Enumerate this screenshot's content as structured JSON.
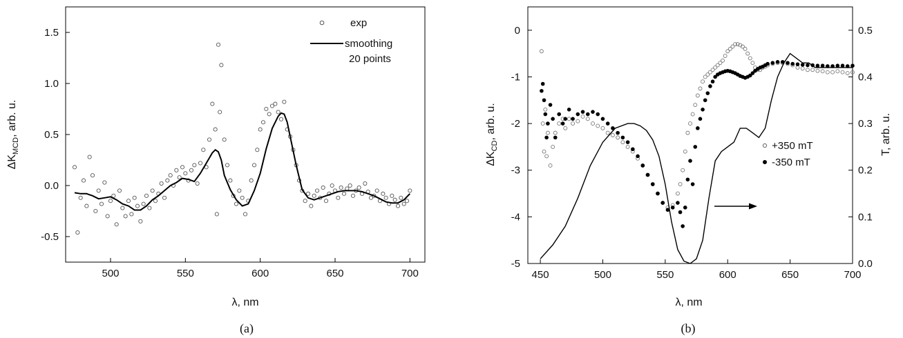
{
  "chart_data": [
    {
      "type": "scatter",
      "panel_label": "(a)",
      "xlabel": "λ, nm",
      "ylabel_main": "ΔK",
      "ylabel_sub": "MCD",
      "ylabel_rest": ", arb. u.",
      "xlim": [
        470,
        710
      ],
      "ylim": [
        -0.75,
        1.75
      ],
      "xticks": [
        500,
        550,
        600,
        650,
        700
      ],
      "yticks": [
        -0.5,
        0.0,
        0.5,
        1.0,
        1.5
      ],
      "ytick_labels": [
        "-0.5",
        "0.0",
        "0.5",
        "1.0",
        "1.5"
      ],
      "legend": {
        "position": "top-right",
        "entries": [
          "exp",
          "smoothing",
          "20 points"
        ]
      },
      "series": [
        {
          "name": "exp",
          "style": "open-circle",
          "x": [
            476,
            478,
            480,
            482,
            484,
            486,
            488,
            490,
            492,
            494,
            496,
            498,
            500,
            502,
            504,
            506,
            508,
            510,
            512,
            514,
            516,
            518,
            520,
            522,
            524,
            526,
            528,
            530,
            532,
            534,
            536,
            538,
            540,
            542,
            544,
            546,
            548,
            550,
            552,
            554,
            556,
            558,
            560,
            562,
            564,
            566,
            568,
            570,
            571,
            572,
            573,
            574,
            576,
            578,
            580,
            582,
            584,
            586,
            588,
            590,
            592,
            594,
            596,
            598,
            600,
            602,
            604,
            606,
            608,
            610,
            612,
            614,
            616,
            618,
            620,
            622,
            624,
            626,
            628,
            630,
            632,
            634,
            636,
            638,
            640,
            642,
            644,
            646,
            648,
            650,
            652,
            654,
            656,
            658,
            660,
            662,
            664,
            666,
            668,
            670,
            672,
            674,
            676,
            678,
            680,
            682,
            684,
            686,
            688,
            690,
            692,
            694,
            696,
            698,
            700
          ],
          "y": [
            0.18,
            -0.46,
            -0.12,
            0.05,
            -0.2,
            0.28,
            0.1,
            -0.25,
            -0.05,
            -0.18,
            0.03,
            -0.3,
            -0.15,
            -0.1,
            -0.38,
            -0.05,
            -0.22,
            -0.3,
            -0.15,
            -0.28,
            -0.12,
            -0.2,
            -0.35,
            -0.18,
            -0.1,
            -0.22,
            -0.05,
            -0.15,
            -0.08,
            0.02,
            -0.12,
            0.05,
            0.1,
            0.0,
            0.15,
            0.08,
            0.18,
            0.12,
            0.05,
            0.15,
            0.2,
            0.02,
            0.22,
            0.35,
            0.18,
            0.45,
            0.8,
            0.55,
            -0.28,
            1.38,
            0.72,
            1.18,
            0.45,
            0.2,
            0.05,
            -0.1,
            -0.18,
            -0.05,
            -0.12,
            -0.28,
            -0.15,
            0.05,
            0.2,
            0.35,
            0.55,
            0.62,
            0.75,
            0.7,
            0.78,
            0.8,
            0.72,
            0.65,
            0.82,
            0.55,
            0.48,
            0.35,
            0.2,
            0.05,
            -0.05,
            -0.15,
            -0.08,
            -0.2,
            -0.1,
            -0.05,
            -0.12,
            -0.02,
            -0.15,
            -0.08,
            0.0,
            -0.05,
            -0.12,
            -0.02,
            -0.08,
            -0.03,
            0.0,
            -0.1,
            -0.05,
            -0.02,
            -0.08,
            0.02,
            -0.06,
            -0.12,
            -0.1,
            -0.05,
            -0.15,
            -0.08,
            -0.12,
            -0.18,
            -0.1,
            -0.14,
            -0.2,
            -0.12,
            -0.18,
            -0.15,
            -0.05
          ]
        },
        {
          "name": "smoothing 20 points",
          "style": "line",
          "x": [
            476,
            480,
            484,
            488,
            492,
            496,
            500,
            504,
            508,
            512,
            516,
            520,
            524,
            528,
            532,
            536,
            540,
            544,
            548,
            552,
            556,
            560,
            564,
            568,
            570,
            572,
            574,
            576,
            580,
            584,
            588,
            592,
            596,
            600,
            604,
            608,
            612,
            614,
            616,
            618,
            620,
            624,
            628,
            632,
            636,
            640,
            644,
            648,
            652,
            656,
            660,
            664,
            668,
            672,
            676,
            680,
            684,
            688,
            692,
            696,
            700
          ],
          "y": [
            -0.07,
            -0.08,
            -0.08,
            -0.1,
            -0.13,
            -0.12,
            -0.11,
            -0.14,
            -0.18,
            -0.2,
            -0.24,
            -0.24,
            -0.2,
            -0.14,
            -0.1,
            -0.05,
            0.0,
            0.03,
            0.07,
            0.06,
            0.04,
            0.12,
            0.22,
            0.32,
            0.35,
            0.33,
            0.25,
            0.1,
            -0.04,
            -0.14,
            -0.2,
            -0.18,
            -0.05,
            0.12,
            0.36,
            0.56,
            0.68,
            0.71,
            0.7,
            0.62,
            0.48,
            0.2,
            -0.04,
            -0.12,
            -0.14,
            -0.12,
            -0.1,
            -0.08,
            -0.06,
            -0.05,
            -0.05,
            -0.05,
            -0.06,
            -0.08,
            -0.1,
            -0.13,
            -0.16,
            -0.17,
            -0.17,
            -0.14,
            -0.08
          ]
        }
      ]
    },
    {
      "type": "scatter",
      "panel_label": "(b)",
      "xlabel": "λ, nm",
      "ylabel_main": "ΔK",
      "ylabel_sub": "CD",
      "ylabel_rest": ", arb. u.",
      "y2label": "T, arb. u.",
      "xlim": [
        440,
        700
      ],
      "ylim": [
        -5,
        0.5
      ],
      "y2lim": [
        0.0,
        0.55
      ],
      "xticks": [
        450,
        500,
        550,
        600,
        650,
        700
      ],
      "yticks": [
        -5,
        -4,
        -3,
        -2,
        -1,
        0
      ],
      "y2ticks": [
        0.0,
        0.1,
        0.2,
        0.3,
        0.4,
        0.5
      ],
      "y2tick_labels": [
        "0.0",
        "0.1",
        "0.2",
        "0.3",
        "0.4",
        "0.5"
      ],
      "legend": {
        "position": "right",
        "entries": [
          "+350 mT",
          "-350 mT"
        ]
      },
      "annotation": "arrow pointing right (T curve on right axis)",
      "series": [
        {
          "name": "+350 mT",
          "style": "open-circle",
          "x": [
            451,
            452,
            453,
            454,
            455,
            456,
            458,
            460,
            462,
            465,
            468,
            470,
            473,
            476,
            480,
            484,
            488,
            492,
            496,
            500,
            504,
            508,
            512,
            516,
            520,
            524,
            528,
            532,
            536,
            540,
            544,
            548,
            552,
            556,
            560,
            562,
            564,
            566,
            568,
            570,
            572,
            574,
            576,
            578,
            580,
            582,
            584,
            586,
            588,
            590,
            592,
            594,
            596,
            598,
            600,
            602,
            604,
            606,
            608,
            610,
            612,
            614,
            616,
            618,
            620,
            622,
            624,
            626,
            628,
            630,
            632,
            636,
            640,
            644,
            648,
            652,
            656,
            660,
            664,
            668,
            672,
            676,
            680,
            684,
            688,
            692,
            696,
            700
          ],
          "y": [
            -0.45,
            -2.0,
            -2.6,
            -1.7,
            -2.7,
            -2.2,
            -2.9,
            -2.5,
            -2.2,
            -2.0,
            -1.9,
            -2.1,
            -1.9,
            -2.0,
            -1.95,
            -1.85,
            -1.9,
            -2.0,
            -2.05,
            -2.1,
            -2.2,
            -2.25,
            -2.3,
            -2.4,
            -2.5,
            -2.6,
            -2.75,
            -2.9,
            -3.1,
            -3.3,
            -3.5,
            -3.7,
            -3.8,
            -3.75,
            -3.5,
            -3.3,
            -3.0,
            -2.6,
            -2.2,
            -2.0,
            -1.8,
            -1.6,
            -1.4,
            -1.25,
            -1.1,
            -1.0,
            -0.95,
            -0.9,
            -0.85,
            -0.8,
            -0.75,
            -0.7,
            -0.65,
            -0.55,
            -0.45,
            -0.4,
            -0.35,
            -0.3,
            -0.3,
            -0.32,
            -0.35,
            -0.4,
            -0.5,
            -0.6,
            -0.7,
            -0.8,
            -0.85,
            -0.85,
            -0.8,
            -0.78,
            -0.75,
            -0.72,
            -0.7,
            -0.7,
            -0.72,
            -0.75,
            -0.8,
            -0.82,
            -0.85,
            -0.85,
            -0.87,
            -0.88,
            -0.9,
            -0.9,
            -0.88,
            -0.9,
            -0.92,
            -0.9
          ]
        },
        {
          "name": "-350 mT",
          "style": "filled-circle",
          "x": [
            451,
            452,
            453,
            454,
            455,
            456,
            458,
            460,
            462,
            465,
            468,
            470,
            473,
            476,
            480,
            484,
            488,
            492,
            496,
            500,
            504,
            508,
            512,
            516,
            520,
            524,
            528,
            532,
            536,
            540,
            544,
            548,
            552,
            556,
            560,
            562,
            564,
            566,
            568,
            570,
            572,
            574,
            576,
            578,
            580,
            582,
            584,
            586,
            588,
            590,
            592,
            594,
            596,
            598,
            600,
            602,
            604,
            606,
            608,
            610,
            612,
            614,
            616,
            618,
            620,
            622,
            624,
            626,
            628,
            630,
            632,
            636,
            640,
            644,
            648,
            652,
            656,
            660,
            664,
            668,
            672,
            676,
            680,
            684,
            688,
            692,
            696,
            700
          ],
          "y": [
            -1.3,
            -1.15,
            -1.5,
            -1.8,
            -2.3,
            -2.0,
            -1.6,
            -1.9,
            -2.3,
            -1.8,
            -2.0,
            -1.9,
            -1.7,
            -1.9,
            -1.8,
            -1.75,
            -1.8,
            -1.75,
            -1.8,
            -1.9,
            -2.0,
            -2.1,
            -2.2,
            -2.3,
            -2.4,
            -2.55,
            -2.7,
            -2.9,
            -3.1,
            -3.3,
            -3.5,
            -3.7,
            -3.85,
            -3.8,
            -3.7,
            -3.9,
            -4.2,
            -3.8,
            -3.2,
            -2.8,
            -3.3,
            -2.5,
            -2.1,
            -1.9,
            -1.7,
            -1.5,
            -1.35,
            -1.2,
            -1.1,
            -1.0,
            -0.95,
            -0.92,
            -0.9,
            -0.88,
            -0.87,
            -0.88,
            -0.9,
            -0.92,
            -0.95,
            -0.98,
            -1.0,
            -1.02,
            -1.0,
            -0.97,
            -0.92,
            -0.87,
            -0.83,
            -0.8,
            -0.78,
            -0.75,
            -0.72,
            -0.7,
            -0.68,
            -0.68,
            -0.7,
            -0.72,
            -0.73,
            -0.74,
            -0.75,
            -0.75,
            -0.76,
            -0.76,
            -0.77,
            -0.77,
            -0.76,
            -0.76,
            -0.77,
            -0.76
          ]
        },
        {
          "name": "T",
          "style": "line",
          "axis": "right",
          "x": [
            450,
            460,
            470,
            480,
            490,
            500,
            510,
            520,
            525,
            530,
            535,
            540,
            545,
            550,
            555,
            560,
            565,
            570,
            575,
            580,
            585,
            590,
            595,
            600,
            605,
            610,
            615,
            620,
            625,
            630,
            635,
            640,
            645,
            650,
            655,
            660,
            665,
            670,
            680,
            690,
            700
          ],
          "y": [
            0.01,
            0.04,
            0.08,
            0.14,
            0.21,
            0.26,
            0.29,
            0.3,
            0.3,
            0.295,
            0.285,
            0.265,
            0.23,
            0.17,
            0.09,
            0.03,
            0.005,
            0.0,
            0.01,
            0.05,
            0.14,
            0.22,
            0.24,
            0.25,
            0.26,
            0.29,
            0.29,
            0.28,
            0.27,
            0.29,
            0.35,
            0.4,
            0.43,
            0.45,
            0.44,
            0.43,
            0.43,
            0.42,
            0.42,
            0.42,
            0.42
          ]
        }
      ]
    }
  ]
}
